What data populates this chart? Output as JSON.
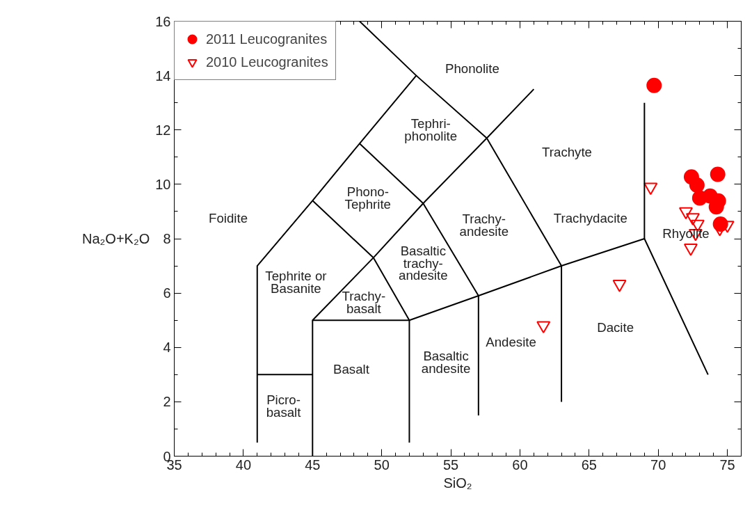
{
  "chart_data": {
    "type": "scatter",
    "xlabel": "SiO₂",
    "ylabel": "Na₂O+K₂O",
    "xlim": [
      35,
      76
    ],
    "ylim": [
      0,
      16
    ],
    "xticks": [
      35,
      40,
      45,
      50,
      55,
      60,
      65,
      70,
      75
    ],
    "yticks": [
      0,
      2,
      4,
      6,
      8,
      10,
      12,
      14,
      16
    ],
    "grid": false,
    "legend": "top left",
    "series": [
      {
        "name": "2011 Leucogranites",
        "color": "#ff0000",
        "marker": "circle",
        "x": [
          69.7,
          72.4,
          74.3,
          72.8,
          72.9,
          73.0,
          73.75,
          74.35,
          74.2,
          74.5
        ],
        "values": [
          13.64,
          10.27,
          10.37,
          9.97,
          null,
          9.5,
          9.57,
          9.39,
          9.17,
          8.54
        ]
      },
      {
        "name": "2010 Leucogranites",
        "color": "#ff0000",
        "marker": "triangle",
        "x": [
          69.45,
          72.0,
          72.5,
          72.85,
          72.35,
          75.0,
          74.45,
          72.7,
          67.2,
          61.7
        ],
        "values": [
          9.9,
          9.0,
          8.78,
          8.54,
          7.66,
          8.5,
          8.38,
          8.2,
          6.33,
          4.81
        ]
      },
      {
        "type": "line",
        "color": "#000000",
        "marker": "none",
        "x": [
          41,
          41,
          45,
          48.4,
          52.5,
          48.4
        ],
        "values": [
          0.5,
          7,
          9.4,
          11.5,
          14,
          16
        ]
      },
      {
        "type": "line",
        "color": "#000000",
        "marker": "none",
        "x": [
          52.5,
          57.6,
          63,
          63
        ],
        "values": [
          14,
          11.7,
          7,
          2
        ]
      },
      {
        "type": "line",
        "color": "#000000",
        "marker": "none",
        "x": [
          45,
          45,
          49.4,
          53,
          57.6,
          61
        ],
        "values": [
          0,
          5,
          7.3,
          9.3,
          11.7,
          13.5
        ]
      },
      {
        "type": "line",
        "color": "#000000",
        "marker": "none",
        "x": [
          45,
          52,
          57,
          63,
          69,
          73.6
        ],
        "values": [
          5,
          5,
          5.9,
          7,
          8,
          3
        ]
      },
      {
        "type": "line",
        "color": "#000000",
        "marker": "none",
        "x": [
          41,
          45
        ],
        "values": [
          3,
          3
        ]
      },
      {
        "type": "line",
        "color": "#000000",
        "marker": "none",
        "x": [
          45,
          49.4,
          52,
          52
        ],
        "values": [
          9.4,
          7.3,
          5,
          0.5
        ]
      },
      {
        "type": "line",
        "color": "#000000",
        "marker": "none",
        "x": [
          48.4,
          53,
          57,
          57
        ],
        "values": [
          11.5,
          9.3,
          5.9,
          1.5
        ]
      },
      {
        "type": "line",
        "color": "#000000",
        "marker": "none",
        "x": [
          69,
          69
        ],
        "values": [
          8,
          13
        ]
      }
    ],
    "annotations": [
      "Phonolite",
      "Tephri-\nphonolite",
      "Trachyte",
      "Foidite",
      "Phono-\nTephrite",
      "Trachy-\nandesite",
      "Trachydacite",
      "Rhyolite",
      "Tephrite or\nBasanite",
      "Basaltic\ntrachy-\nandesite",
      "Trachy-\nbasalt",
      "Dacite",
      "Andesite",
      "Basalt",
      "Basaltic\nandesite",
      "Picro-\nbasalt"
    ]
  }
}
